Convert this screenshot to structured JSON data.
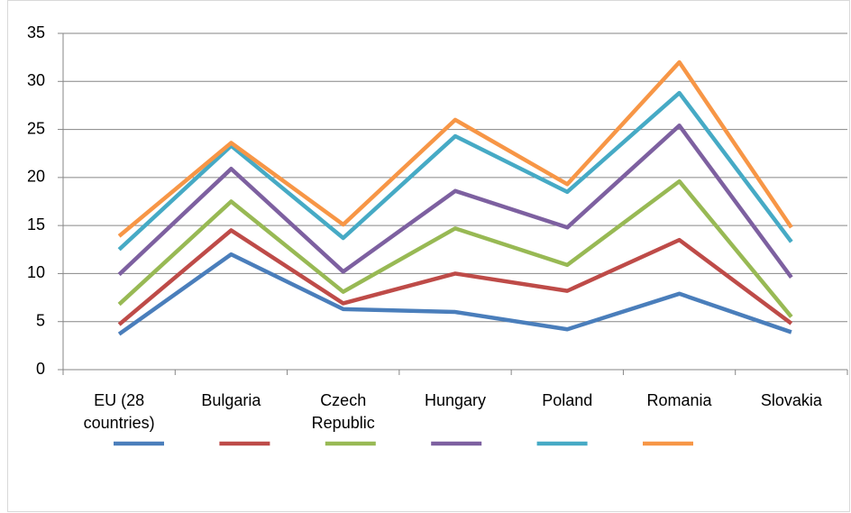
{
  "chart_data": {
    "type": "line",
    "categories": [
      "EU (28 countries)",
      "Bulgaria",
      "Czech Republic",
      "Hungary",
      "Poland",
      "Romania",
      "Slovakia"
    ],
    "series": [
      {
        "color": "#4a7ebb",
        "values": [
          3.7,
          12,
          6.3,
          6,
          4.2,
          7.9,
          3.9
        ]
      },
      {
        "color": "#be4b48",
        "values": [
          4.7,
          14.5,
          6.9,
          10,
          8.2,
          13.5,
          4.8
        ]
      },
      {
        "color": "#98b954",
        "values": [
          6.8,
          17.5,
          8.1,
          14.7,
          10.9,
          19.6,
          5.5
        ]
      },
      {
        "color": "#7d60a0",
        "values": [
          9.9,
          20.9,
          10.2,
          18.6,
          14.8,
          25.4,
          9.6
        ]
      },
      {
        "color": "#46aac5",
        "values": [
          12.5,
          23.3,
          13.7,
          24.3,
          18.5,
          28.8,
          13.3
        ]
      },
      {
        "color": "#f79646",
        "values": [
          13.9,
          23.6,
          15.1,
          26,
          19.3,
          32,
          14.8
        ]
      }
    ],
    "ylim": [
      0,
      35
    ],
    "yticks": [
      0,
      5,
      10,
      15,
      20,
      25,
      30,
      35
    ],
    "grid": true
  }
}
